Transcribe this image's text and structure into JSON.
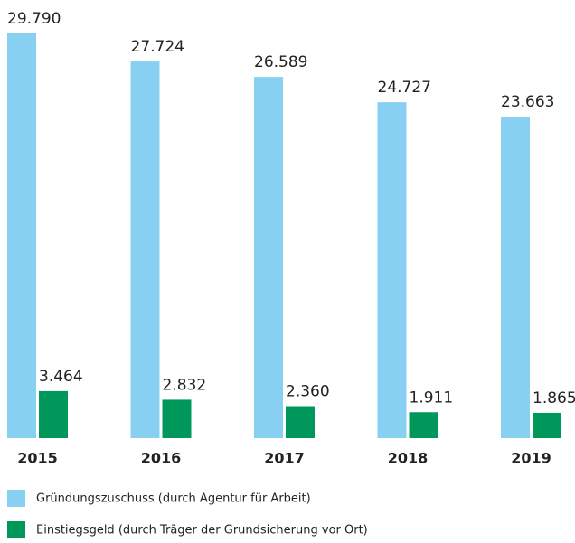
{
  "chart_data": {
    "type": "bar",
    "categories": [
      "2015",
      "2016",
      "2017",
      "2018",
      "2019"
    ],
    "series": [
      {
        "name": "Gründungszuschuss (durch Agentur für Arbeit)",
        "color": "#88d0f2",
        "values": [
          29790,
          27724,
          26589,
          24727,
          23663
        ],
        "value_labels": [
          "29.790",
          "27.724",
          "26.589",
          "24.727",
          "23.663"
        ]
      },
      {
        "name": "Einstiegsgeld (durch Träger der Grundsicherung vor Ort)",
        "color": "#00985a",
        "values": [
          3464,
          2832,
          2360,
          1911,
          1865
        ],
        "value_labels": [
          "3.464",
          "2.832",
          "2.360",
          "1.911",
          "1.865"
        ]
      }
    ]
  }
}
